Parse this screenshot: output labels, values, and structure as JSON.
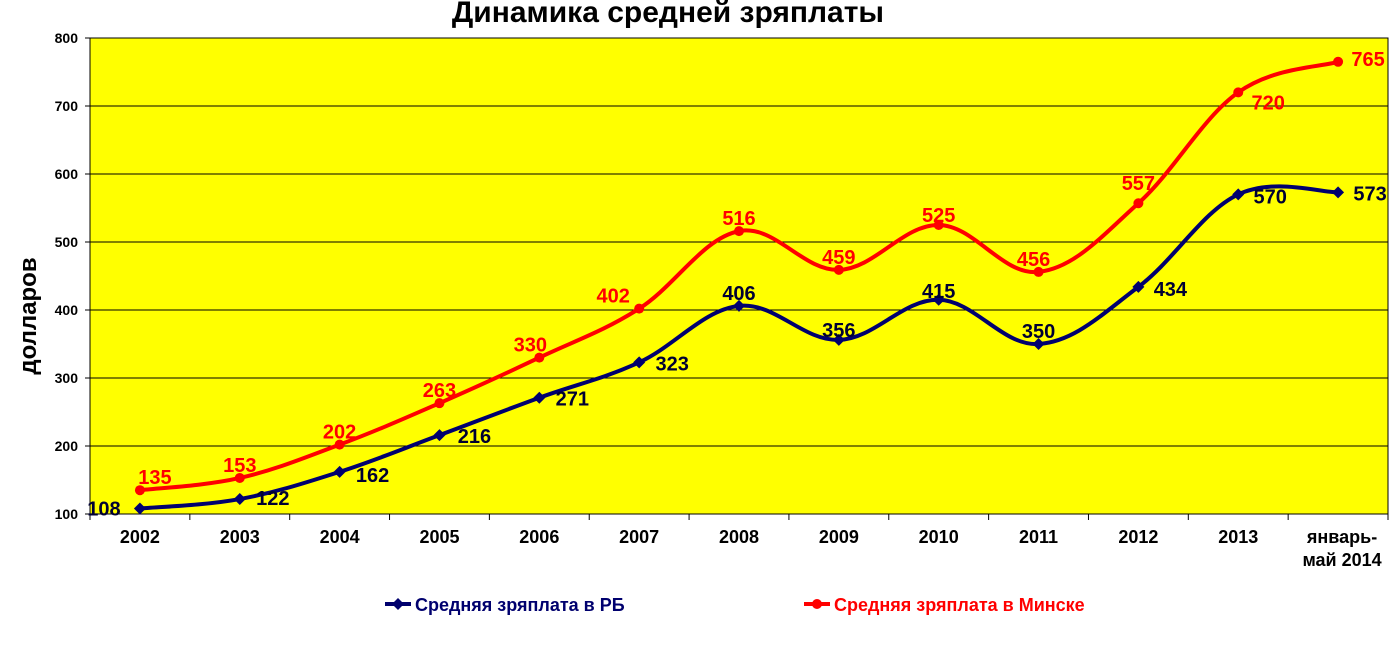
{
  "chart_data": {
    "type": "line",
    "title": "Динамика средней зряплаты",
    "ylabel": "долларов",
    "xlabel": "",
    "ylim": [
      100,
      800
    ],
    "yticks": [
      100,
      200,
      300,
      400,
      500,
      600,
      700,
      800
    ],
    "categories": [
      "2002",
      "2003",
      "2004",
      "2005",
      "2006",
      "2007",
      "2008",
      "2009",
      "2010",
      "2011",
      "2012",
      "2013",
      "январь-\nмай 2014"
    ],
    "grid": true,
    "plot_background": "#ffff00",
    "legend_position": "bottom",
    "series": [
      {
        "name": "Средняя зряплата в РБ",
        "color": "#00006e",
        "marker": "diamond",
        "values": [
          108,
          122,
          162,
          216,
          271,
          323,
          406,
          356,
          415,
          350,
          434,
          570,
          573
        ]
      },
      {
        "name": "Средняя зряплата в Минске",
        "color": "#ff0000",
        "marker": "circle",
        "values": [
          135,
          153,
          202,
          263,
          330,
          402,
          516,
          459,
          525,
          456,
          557,
          720,
          765
        ]
      }
    ]
  }
}
